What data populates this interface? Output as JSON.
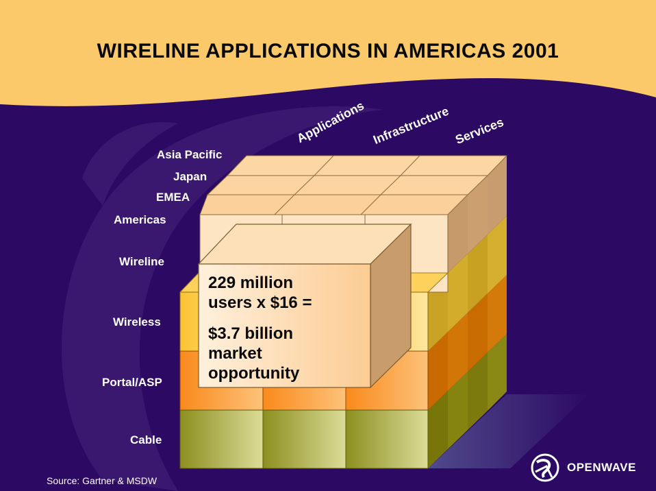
{
  "title": "WIRELINE APPLICATIONS IN AMERICAS 2001",
  "columns": [
    "Applications",
    "Infrastructure",
    "Services"
  ],
  "regions": [
    "Asia Pacific",
    "Japan",
    "EMEA",
    "Americas"
  ],
  "layers": [
    "Wireline",
    "Wireless",
    "Portal/ASP",
    "Cable"
  ],
  "callout": {
    "line1": "229 million",
    "line2": "users x $16 =",
    "line3": "$3.7 billion",
    "line4": "market",
    "line5": "opportunity"
  },
  "source": "Source: Gartner & MSDW",
  "brand": {
    "name": "OPENWAVE"
  },
  "colors": {
    "background": "#2c0a63",
    "header": "#fbc96a",
    "region_box": "#fddcb0",
    "wireline_layer": "#fdd45a",
    "portal_layer": "#f79a28",
    "cable_layer": "#b7ba55"
  }
}
